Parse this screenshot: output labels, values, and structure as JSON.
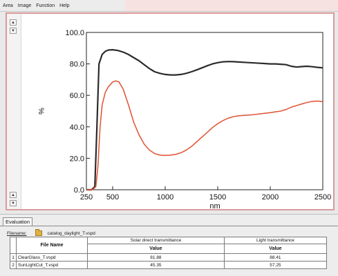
{
  "menu": [
    "Area",
    "Image",
    "Function",
    "Help"
  ],
  "chart_data": {
    "type": "line",
    "xlabel": "nm",
    "ylabel": "%",
    "xlim": [
      250,
      2500
    ],
    "ylim": [
      0,
      100
    ],
    "x_ticks": [
      "250",
      "500",
      "1000",
      "1500",
      "2000",
      "2500"
    ],
    "x_tick_values": [
      250,
      500,
      1000,
      1500,
      2000,
      2500
    ],
    "y_ticks": [
      "0.0",
      "20.0",
      "40.0",
      "60.0",
      "80.0",
      "100.0"
    ],
    "y_tick_values": [
      0,
      20,
      40,
      60,
      80,
      100
    ],
    "series": [
      {
        "color": "#2b2b2b",
        "x": [
          250,
          300,
          330,
          350,
          370,
          400,
          430,
          460,
          500,
          550,
          600,
          650,
          700,
          750,
          800,
          850,
          900,
          950,
          1000,
          1050,
          1100,
          1150,
          1200,
          1250,
          1300,
          1350,
          1400,
          1450,
          1500,
          1550,
          1600,
          1650,
          1700,
          1750,
          1800,
          1850,
          1900,
          1950,
          2000,
          2050,
          2100,
          2150,
          2200,
          2250,
          2300,
          2350,
          2400,
          2450,
          2500
        ],
        "y": [
          0,
          0,
          2,
          40,
          80,
          86,
          88,
          88.8,
          89,
          88.5,
          87.5,
          86,
          84,
          82,
          79.5,
          77,
          75,
          74,
          73.3,
          73,
          73,
          73.3,
          74,
          75,
          76.2,
          77.5,
          78.8,
          80,
          80.8,
          81.3,
          81.5,
          81.4,
          81.2,
          81,
          80.8,
          80.6,
          80.4,
          80.2,
          80,
          80,
          79.8,
          79.5,
          78.5,
          78,
          78.3,
          78.5,
          78.2,
          77.8,
          77.5
        ]
      },
      {
        "color": "#e05a3c",
        "x": [
          250,
          310,
          340,
          360,
          380,
          400,
          430,
          460,
          500,
          530,
          560,
          600,
          650,
          700,
          750,
          800,
          850,
          900,
          950,
          1000,
          1050,
          1100,
          1150,
          1200,
          1250,
          1300,
          1350,
          1400,
          1450,
          1500,
          1550,
          1600,
          1650,
          1700,
          1750,
          1800,
          1850,
          1900,
          1950,
          2000,
          2050,
          2100,
          2150,
          2200,
          2250,
          2300,
          2350,
          2400,
          2450,
          2500
        ],
        "y": [
          0,
          0,
          2,
          15,
          40,
          54,
          62,
          65.5,
          68.5,
          69.2,
          68.5,
          64,
          54,
          43,
          35,
          29,
          25.2,
          23,
          22,
          21.8,
          22,
          22.5,
          23.5,
          25.2,
          27.5,
          30.5,
          33.5,
          36.5,
          39.5,
          42,
          44,
          45.5,
          46.5,
          47,
          47.3,
          47.5,
          47.8,
          48.2,
          48.6,
          49,
          49.5,
          50,
          51,
          52.5,
          53.5,
          54.5,
          55.5,
          56.2,
          56.4,
          56
        ]
      }
    ]
  },
  "evaluation": {
    "tab_label": "Evaluation",
    "filename_label": "Filename:",
    "filename_value": "catalog_daylight_T.vspd",
    "table": {
      "group_headers": [
        "Solar direct transmittance",
        "Light transmittance"
      ],
      "columns": [
        "File Name",
        "Value",
        "Value"
      ],
      "rows": [
        {
          "num": "1",
          "file": "ClearGlass_T.vspd",
          "solar": "81.88",
          "light": "88.41"
        },
        {
          "num": "2",
          "file": "SunLightCut_T.vspd",
          "solar": "45.35",
          "light": "57.25"
        }
      ]
    }
  }
}
